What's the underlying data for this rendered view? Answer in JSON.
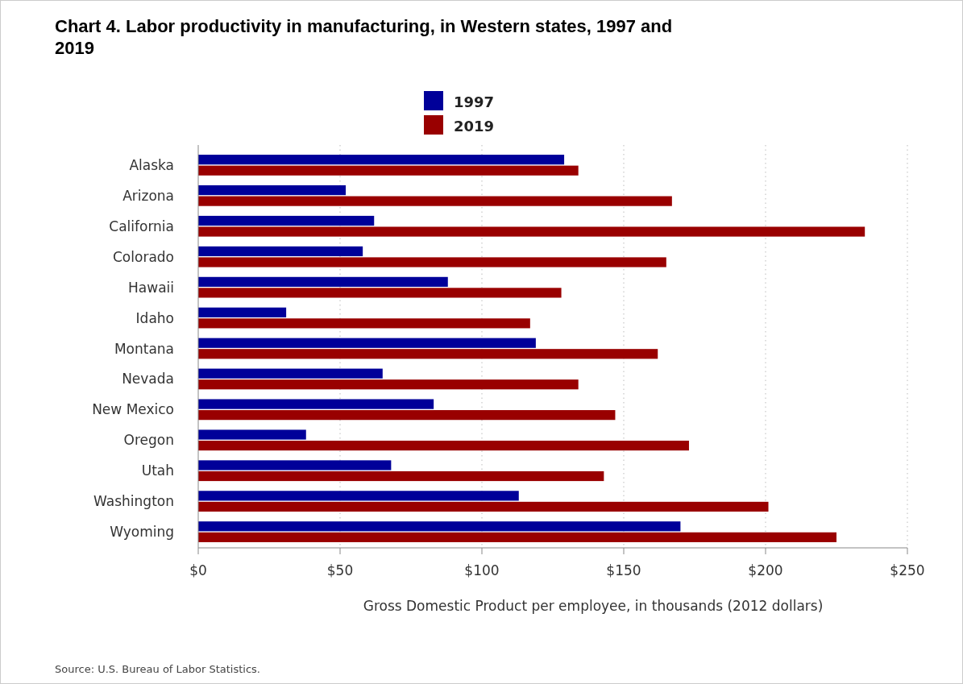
{
  "chart_data": {
    "type": "bar",
    "orientation": "horizontal",
    "title": "Chart 4. Labor productivity in manufacturing, in Western states, 1997 and 2019",
    "xlabel": "Gross Domestic Product per employee, in thousands (2012 dollars)",
    "categories": [
      "Alaska",
      "Arizona",
      "California",
      "Colorado",
      "Hawaii",
      "Idaho",
      "Montana",
      "Nevada",
      "New Mexico",
      "Oregon",
      "Utah",
      "Washington",
      "Wyoming"
    ],
    "series": [
      {
        "name": "1997",
        "color": "#000099",
        "values": [
          129,
          52,
          62,
          58,
          88,
          31,
          119,
          65,
          83,
          38,
          68,
          113,
          170
        ]
      },
      {
        "name": "2019",
        "color": "#990000",
        "values": [
          134,
          167,
          235,
          165,
          128,
          117,
          162,
          134,
          147,
          173,
          143,
          201,
          225
        ]
      }
    ],
    "xlim": [
      0,
      250
    ],
    "xticks": [
      {
        "value": 0,
        "label": "$0"
      },
      {
        "value": 50,
        "label": "$50"
      },
      {
        "value": 100,
        "label": "$100"
      },
      {
        "value": 150,
        "label": "$150"
      },
      {
        "value": 200,
        "label": "$200"
      },
      {
        "value": 250,
        "label": "$250"
      }
    ],
    "grid": "x",
    "legend": "top",
    "annotations": [
      "Source: U.S. Bureau of Labor Statistics."
    ]
  }
}
